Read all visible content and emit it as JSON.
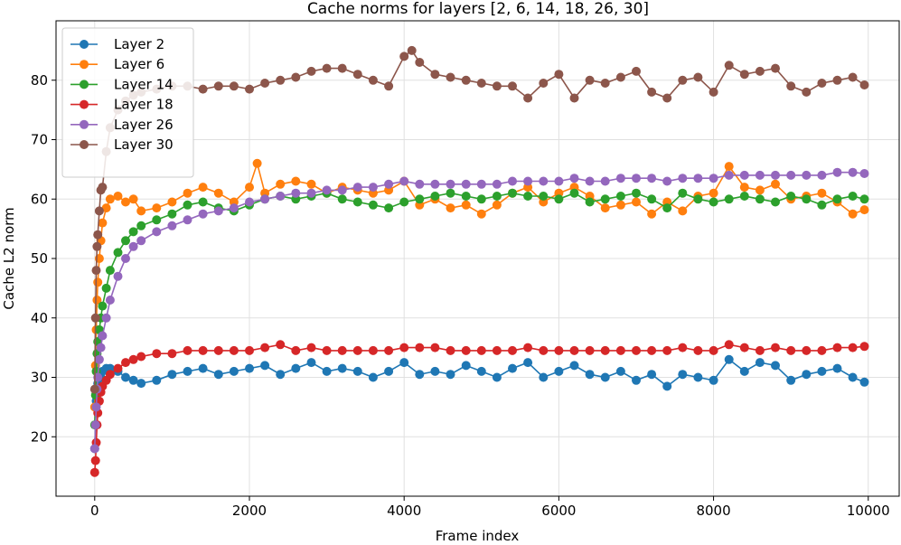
{
  "chart_data": {
    "type": "line",
    "title": "Cache norms for layers [2, 6, 14, 18, 26, 30]",
    "xlabel": "Frame index",
    "ylabel": "Cache L2 norm",
    "xlim": [
      -500,
      10400
    ],
    "ylim": [
      10,
      90
    ],
    "xticks": [
      0,
      2000,
      4000,
      6000,
      8000,
      10000
    ],
    "yticks": [
      20,
      30,
      40,
      50,
      60,
      70,
      80
    ],
    "grid": true,
    "legend_position": "top-left",
    "series": [
      {
        "name": "Layer 2",
        "color": "#1f77b4",
        "x": [
          0,
          10,
          20,
          30,
          40,
          60,
          80,
          100,
          150,
          200,
          300,
          400,
          500,
          600,
          800,
          1000,
          1200,
          1400,
          1600,
          1800,
          2000,
          2200,
          2400,
          2600,
          2800,
          3000,
          3200,
          3400,
          3600,
          3800,
          4000,
          4200,
          4400,
          4600,
          4800,
          5000,
          5200,
          5400,
          5600,
          5800,
          6000,
          6200,
          6400,
          6600,
          6800,
          7000,
          7200,
          7400,
          7600,
          7800,
          8000,
          8200,
          8400,
          8600,
          8800,
          9000,
          9200,
          9400,
          9600,
          9800,
          9950
        ],
        "values": [
          18,
          22,
          26,
          28,
          29,
          30,
          30,
          31,
          31.5,
          31.5,
          31,
          30,
          29.5,
          29,
          29.5,
          30.5,
          31,
          31.5,
          30.5,
          31,
          31.5,
          32,
          30.5,
          31.5,
          32.5,
          31,
          31.5,
          31,
          30,
          31,
          32.5,
          30.5,
          31,
          30.5,
          32,
          31,
          30,
          31.5,
          32.5,
          30,
          31,
          32,
          30.5,
          30,
          31,
          29.5,
          30.5,
          28.5,
          30.5,
          30,
          29.5,
          33,
          31,
          32.5,
          32,
          29.5,
          30.5,
          31,
          31.5,
          30,
          29.2
        ]
      },
      {
        "name": "Layer 6",
        "color": "#ff7f0e",
        "x": [
          0,
          10,
          20,
          30,
          40,
          60,
          80,
          100,
          150,
          200,
          300,
          400,
          500,
          600,
          800,
          1000,
          1200,
          1400,
          1600,
          1800,
          2000,
          2100,
          2200,
          2400,
          2600,
          2800,
          3000,
          3200,
          3400,
          3600,
          3800,
          4000,
          4200,
          4400,
          4600,
          4800,
          5000,
          5200,
          5400,
          5600,
          5800,
          6000,
          6200,
          6400,
          6600,
          6800,
          7000,
          7200,
          7400,
          7600,
          7800,
          8000,
          8200,
          8400,
          8600,
          8800,
          9000,
          9200,
          9400,
          9600,
          9800,
          9950
        ],
        "values": [
          25,
          32,
          38,
          43,
          46,
          50,
          53,
          56,
          58.5,
          60,
          60.5,
          59.5,
          60,
          58,
          58.5,
          59.5,
          61,
          62,
          61,
          59.5,
          62,
          66,
          61,
          62.5,
          63,
          62.5,
          61,
          62,
          61.5,
          61,
          61.5,
          63,
          59,
          60,
          58.5,
          59,
          57.5,
          59,
          61,
          62,
          59.5,
          61,
          62,
          60.5,
          58.5,
          59,
          59.5,
          57.5,
          59.5,
          58,
          60.5,
          61,
          65.5,
          62,
          61.5,
          62.5,
          60,
          60.5,
          61,
          59.5,
          57.5,
          58.2
        ]
      },
      {
        "name": "Layer 14",
        "color": "#2ca02c",
        "x": [
          0,
          10,
          20,
          30,
          40,
          60,
          80,
          100,
          150,
          200,
          300,
          400,
          500,
          600,
          800,
          1000,
          1200,
          1400,
          1600,
          1800,
          2000,
          2200,
          2400,
          2600,
          2800,
          3000,
          3200,
          3400,
          3600,
          3800,
          4000,
          4200,
          4400,
          4600,
          4800,
          5000,
          5200,
          5400,
          5600,
          5800,
          6000,
          6200,
          6400,
          6600,
          6800,
          7000,
          7200,
          7400,
          7600,
          7800,
          8000,
          8200,
          8400,
          8600,
          8800,
          9000,
          9200,
          9400,
          9600,
          9800,
          9950
        ],
        "values": [
          22,
          27,
          31,
          34,
          36,
          38,
          40,
          42,
          45,
          48,
          51,
          53,
          54.5,
          55.5,
          56.5,
          57.5,
          59,
          59.5,
          58.5,
          58,
          59,
          60,
          60.5,
          60,
          60.5,
          61,
          60,
          59.5,
          59,
          58.5,
          59.5,
          60,
          60.5,
          61,
          60.5,
          60,
          60.5,
          61,
          60.5,
          60.5,
          60,
          61,
          59.5,
          60,
          60.5,
          61,
          60,
          58.5,
          61,
          60,
          59.5,
          60,
          60.5,
          60,
          59.5,
          60.5,
          60,
          59,
          60,
          60.5,
          60
        ]
      },
      {
        "name": "Layer 18",
        "color": "#d62728",
        "x": [
          0,
          10,
          20,
          30,
          40,
          60,
          80,
          100,
          150,
          200,
          300,
          400,
          500,
          600,
          800,
          1000,
          1200,
          1400,
          1600,
          1800,
          2000,
          2200,
          2400,
          2600,
          2800,
          3000,
          3200,
          3400,
          3600,
          3800,
          4000,
          4200,
          4400,
          4600,
          4800,
          5000,
          5200,
          5400,
          5600,
          5800,
          6000,
          6200,
          6400,
          6600,
          6800,
          7000,
          7200,
          7400,
          7600,
          7800,
          8000,
          8200,
          8400,
          8600,
          8800,
          9000,
          9200,
          9400,
          9600,
          9800,
          9950
        ],
        "values": [
          14,
          16,
          19,
          22,
          24,
          26,
          27.5,
          28.5,
          29.5,
          30.5,
          31.5,
          32.5,
          33,
          33.5,
          34,
          34,
          34.5,
          34.5,
          34.5,
          34.5,
          34.5,
          35,
          35.5,
          34.5,
          35,
          34.5,
          34.5,
          34.5,
          34.5,
          34.5,
          35,
          35,
          35,
          34.5,
          34.5,
          34.5,
          34.5,
          34.5,
          35,
          34.5,
          34.5,
          34.5,
          34.5,
          34.5,
          34.5,
          34.5,
          34.5,
          34.5,
          35,
          34.5,
          34.5,
          35.5,
          35,
          34.5,
          35,
          34.5,
          34.5,
          34.5,
          35,
          35,
          35.2
        ]
      },
      {
        "name": "Layer 26",
        "color": "#9467bd",
        "x": [
          0,
          10,
          20,
          30,
          40,
          60,
          80,
          100,
          150,
          200,
          300,
          400,
          500,
          600,
          800,
          1000,
          1200,
          1400,
          1600,
          1800,
          2000,
          2200,
          2400,
          2600,
          2800,
          3000,
          3200,
          3400,
          3600,
          3800,
          4000,
          4200,
          4400,
          4600,
          4800,
          5000,
          5200,
          5400,
          5600,
          5800,
          6000,
          6200,
          6400,
          6600,
          6800,
          7000,
          7200,
          7400,
          7600,
          7800,
          8000,
          8200,
          8400,
          8600,
          8800,
          9000,
          9200,
          9400,
          9600,
          9800,
          9950
        ],
        "values": [
          18,
          22,
          25,
          28,
          30,
          33,
          35,
          37,
          40,
          43,
          47,
          50,
          52,
          53,
          54.5,
          55.5,
          56.5,
          57.5,
          58,
          58.5,
          59.5,
          60,
          60.5,
          61,
          61,
          61.5,
          61.5,
          62,
          62,
          62.5,
          63,
          62.5,
          62.5,
          62.5,
          62.5,
          62.5,
          62.5,
          63,
          63,
          63,
          63,
          63.5,
          63,
          63,
          63.5,
          63.5,
          63.5,
          63,
          63.5,
          63.5,
          63.5,
          64,
          64,
          64,
          64,
          64,
          64,
          64,
          64.5,
          64.5,
          64.3
        ]
      },
      {
        "name": "Layer 30",
        "color": "#8c564b",
        "x": [
          0,
          10,
          20,
          30,
          40,
          60,
          80,
          100,
          150,
          200,
          300,
          400,
          500,
          600,
          800,
          1000,
          1200,
          1400,
          1600,
          1800,
          2000,
          2200,
          2400,
          2600,
          2800,
          3000,
          3200,
          3400,
          3600,
          3800,
          4000,
          4100,
          4200,
          4400,
          4600,
          4800,
          5000,
          5200,
          5400,
          5600,
          5800,
          6000,
          6200,
          6400,
          6600,
          6800,
          7000,
          7200,
          7400,
          7600,
          7800,
          8000,
          8200,
          8400,
          8600,
          8800,
          9000,
          9200,
          9400,
          9600,
          9800,
          9950
        ],
        "values": [
          28,
          40,
          48,
          52,
          54,
          58,
          61.5,
          62,
          68,
          72,
          75,
          76.5,
          77.5,
          78,
          78.5,
          79,
          79,
          78.5,
          79,
          79,
          78.5,
          79.5,
          80,
          80.5,
          81.5,
          82,
          82,
          81,
          80,
          79,
          84,
          85,
          83,
          81,
          80.5,
          80,
          79.5,
          79,
          79,
          77,
          79.5,
          81,
          77,
          80,
          79.5,
          80.5,
          81.5,
          78,
          77,
          80,
          80.5,
          78,
          82.5,
          81,
          81.5,
          82,
          79,
          78,
          79.5,
          80,
          80.5,
          79.2
        ]
      }
    ]
  }
}
